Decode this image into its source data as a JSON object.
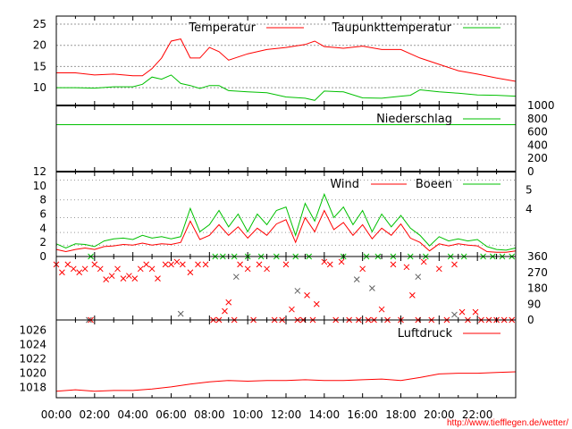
{
  "colors": {
    "red": "#ff0000",
    "green": "#00c000",
    "grid": "#999999"
  },
  "footer_url": "http://www.tiefflegen.de/wetter/",
  "x_axis": {
    "range_hours": [
      0,
      24
    ],
    "tick_labels": [
      "00:00",
      "02:00",
      "04:00",
      "06:00",
      "08:00",
      "10:00",
      "12:00",
      "14:00",
      "16:00",
      "18:00",
      "20:00",
      "22:00"
    ]
  },
  "chart_data": [
    {
      "type": "line",
      "ylim": [
        5.8,
        26.9
      ],
      "yticks": [
        10,
        15,
        20,
        25
      ],
      "grid": true,
      "legend_position": "top-right",
      "x": [
        0,
        1,
        2,
        3,
        4,
        4.5,
        5,
        5.5,
        6,
        6.5,
        7,
        7.5,
        8,
        8.5,
        9,
        10,
        11,
        12,
        13,
        13.5,
        14,
        15,
        16,
        17,
        18,
        18.5,
        19,
        20,
        21,
        22,
        23,
        24
      ],
      "series": [
        {
          "name": "Temperatur",
          "color": "#ff0000",
          "values": [
            13.5,
            13.5,
            13.0,
            13.2,
            12.8,
            12.8,
            14.5,
            17,
            21,
            21.5,
            17,
            17,
            19.5,
            18.5,
            16.5,
            18,
            19,
            19.5,
            20.2,
            21,
            19.7,
            19.3,
            19.8,
            19,
            19,
            18,
            17,
            15.5,
            14,
            13.2,
            12.3,
            11.5
          ]
        },
        {
          "name": "Taupunkttemperatur",
          "color": "#00c000",
          "values": [
            10,
            10,
            9.9,
            10.2,
            10.2,
            10.8,
            12.5,
            12,
            13,
            11,
            10.5,
            9.8,
            10.5,
            10.5,
            9.3,
            9,
            8.8,
            7.8,
            7.5,
            7,
            9.2,
            9,
            7.6,
            7.5,
            8,
            8.2,
            9.5,
            9,
            8.7,
            8.3,
            8.2,
            8
          ]
        }
      ]
    },
    {
      "type": "line",
      "ylim": [
        0,
        1000
      ],
      "yticks": [
        0,
        200,
        400,
        600,
        800,
        1000
      ],
      "legend_position": "top-right",
      "series": [
        {
          "name": "Niederschlag",
          "color": "#00c000",
          "constant": 710
        }
      ]
    },
    {
      "type": "line",
      "ylim": [
        0,
        12
      ],
      "yticks": [
        0,
        2,
        4,
        6,
        8,
        10,
        12
      ],
      "right_labels": [
        {
          "label": "5",
          "value": 9.4
        },
        {
          "label": "4",
          "value": 6.7
        }
      ],
      "grid_values": [
        1.6,
        3.4,
        5.5,
        8.0,
        10.8
      ],
      "legend_position": "top-right",
      "x_step_hours": 0.5,
      "series": [
        {
          "name": "Wind",
          "color": "#ff0000",
          "values": [
            1.0,
            0.7,
            1.0,
            1.2,
            1.0,
            1.4,
            1.5,
            1.7,
            1.6,
            1.9,
            1.6,
            1.8,
            1.7,
            2.0,
            5.0,
            2.4,
            3.0,
            4.5,
            3.0,
            4.2,
            2.6,
            4.0,
            3.0,
            4.6,
            5.2,
            2.0,
            5.5,
            3.5,
            6.5,
            3.8,
            4.8,
            3.0,
            4.5,
            2.5,
            4.0,
            3.0,
            4.6,
            2.6,
            2.0,
            0.8,
            1.8,
            1.5,
            1.8,
            1.6,
            1.5,
            0.7,
            0.6,
            0.6,
            0.8
          ]
        },
        {
          "name": "Boeen",
          "color": "#00c000",
          "values": [
            1.8,
            1.2,
            1.8,
            1.7,
            1.4,
            2.2,
            2.5,
            2.6,
            2.4,
            3.0,
            2.6,
            2.8,
            2.5,
            2.8,
            6.8,
            3.5,
            4.5,
            6.5,
            4.2,
            6.0,
            3.5,
            6.0,
            4.5,
            6.5,
            7.0,
            3.0,
            7.5,
            5.0,
            8.8,
            5.5,
            7.0,
            4.5,
            6.5,
            3.5,
            6.0,
            4.2,
            5.8,
            4.0,
            3.0,
            1.5,
            2.8,
            2.2,
            2.5,
            2.2,
            2.4,
            1.4,
            1.0,
            0.9,
            1.2
          ]
        }
      ]
    },
    {
      "type": "scatter",
      "ylim": [
        0,
        360
      ],
      "yticks": [
        0,
        90,
        180,
        270,
        360
      ],
      "series": [
        {
          "color": "#ff0000",
          "points": [
            [
              0,
              315
            ],
            [
              0.3,
              270
            ],
            [
              0.6,
              315
            ],
            [
              0.9,
              290
            ],
            [
              1.2,
              270
            ],
            [
              1.5,
              290
            ],
            [
              1.8,
              0
            ],
            [
              2,
              315
            ],
            [
              2.3,
              290
            ],
            [
              2.6,
              230
            ],
            [
              2.9,
              250
            ],
            [
              3.2,
              290
            ],
            [
              3.5,
              235
            ],
            [
              3.8,
              250
            ],
            [
              4.1,
              235
            ],
            [
              4.4,
              290
            ],
            [
              4.7,
              315
            ],
            [
              5.0,
              290
            ],
            [
              5.3,
              235
            ],
            [
              5.7,
              315
            ],
            [
              6.0,
              315
            ],
            [
              6.3,
              330
            ],
            [
              6.6,
              315
            ],
            [
              7.0,
              270
            ],
            [
              7.4,
              315
            ],
            [
              7.8,
              315
            ],
            [
              8.2,
              0
            ],
            [
              8.5,
              0
            ],
            [
              8.8,
              50
            ],
            [
              9.0,
              100
            ],
            [
              9.3,
              0
            ],
            [
              9.6,
              315
            ],
            [
              10.0,
              290
            ],
            [
              10.3,
              0
            ],
            [
              10.6,
              315
            ],
            [
              11.0,
              290
            ],
            [
              11.4,
              0
            ],
            [
              11.8,
              0
            ],
            [
              12.0,
              315
            ],
            [
              12.3,
              60
            ],
            [
              12.6,
              0
            ],
            [
              12.9,
              0
            ],
            [
              13.1,
              140
            ],
            [
              13.4,
              0
            ],
            [
              13.6,
              90
            ],
            [
              14.0,
              330
            ],
            [
              14.3,
              315
            ],
            [
              14.6,
              0
            ],
            [
              14.9,
              330
            ],
            [
              15.3,
              0
            ],
            [
              15.8,
              0
            ],
            [
              16.0,
              290
            ],
            [
              16.3,
              0
            ],
            [
              16.6,
              0
            ],
            [
              17.0,
              60
            ],
            [
              17.3,
              0
            ],
            [
              17.6,
              315
            ],
            [
              18.0,
              0
            ],
            [
              18.3,
              300
            ],
            [
              18.6,
              140
            ],
            [
              18.9,
              0
            ],
            [
              19.2,
              330
            ],
            [
              19.6,
              0
            ],
            [
              20.0,
              290
            ],
            [
              20.4,
              0
            ],
            [
              20.8,
              315
            ],
            [
              21.2,
              45
            ],
            [
              21.5,
              0
            ],
            [
              21.9,
              45
            ],
            [
              22.2,
              0
            ],
            [
              22.6,
              0
            ],
            [
              23.0,
              0
            ],
            [
              23.4,
              0
            ],
            [
              23.8,
              0
            ]
          ]
        },
        {
          "color": "#00c000",
          "points": [
            [
              1.8,
              360
            ],
            [
              8.3,
              360
            ],
            [
              8.7,
              360
            ],
            [
              9.3,
              360
            ],
            [
              10.0,
              360
            ],
            [
              10.7,
              360
            ],
            [
              11.5,
              360
            ],
            [
              12.5,
              360
            ],
            [
              13.2,
              360
            ],
            [
              15.0,
              360
            ],
            [
              16.2,
              360
            ],
            [
              16.8,
              360
            ],
            [
              17.6,
              360
            ],
            [
              18.5,
              360
            ],
            [
              19.3,
              360
            ],
            [
              20.6,
              360
            ],
            [
              21.3,
              360
            ],
            [
              22.3,
              360
            ],
            [
              22.8,
              360
            ],
            [
              23.3,
              360
            ],
            [
              23.8,
              360
            ]
          ]
        },
        {
          "color": "#606060",
          "points": [
            [
              1.7,
              0
            ],
            [
              6.5,
              35
            ],
            [
              9.4,
              245
            ],
            [
              12.6,
              165
            ],
            [
              15.7,
              230
            ],
            [
              16.5,
              180
            ],
            [
              18.9,
              245
            ],
            [
              20.8,
              30
            ]
          ]
        }
      ]
    },
    {
      "type": "line",
      "ylim": [
        1016.6,
        1027.4
      ],
      "yticks": [
        1018,
        1020,
        1022,
        1024,
        1026
      ],
      "legend_position": "top-right",
      "x": [
        0,
        1,
        2,
        3,
        4,
        5,
        6,
        7,
        8,
        9,
        10,
        11,
        12,
        13,
        14,
        15,
        16,
        17,
        18,
        19,
        20,
        21,
        22,
        23,
        24
      ],
      "series": [
        {
          "name": "Luftdruck",
          "color": "#ff0000",
          "values": [
            1017.5,
            1017.7,
            1017.5,
            1017.6,
            1017.6,
            1017.8,
            1018.1,
            1018.5,
            1018.8,
            1019.0,
            1018.9,
            1019.0,
            1019.0,
            1019.1,
            1019.0,
            1019.0,
            1019.1,
            1019.2,
            1019.0,
            1019.4,
            1019.9,
            1020.0,
            1020.0,
            1020.1,
            1020.2
          ]
        }
      ]
    }
  ]
}
